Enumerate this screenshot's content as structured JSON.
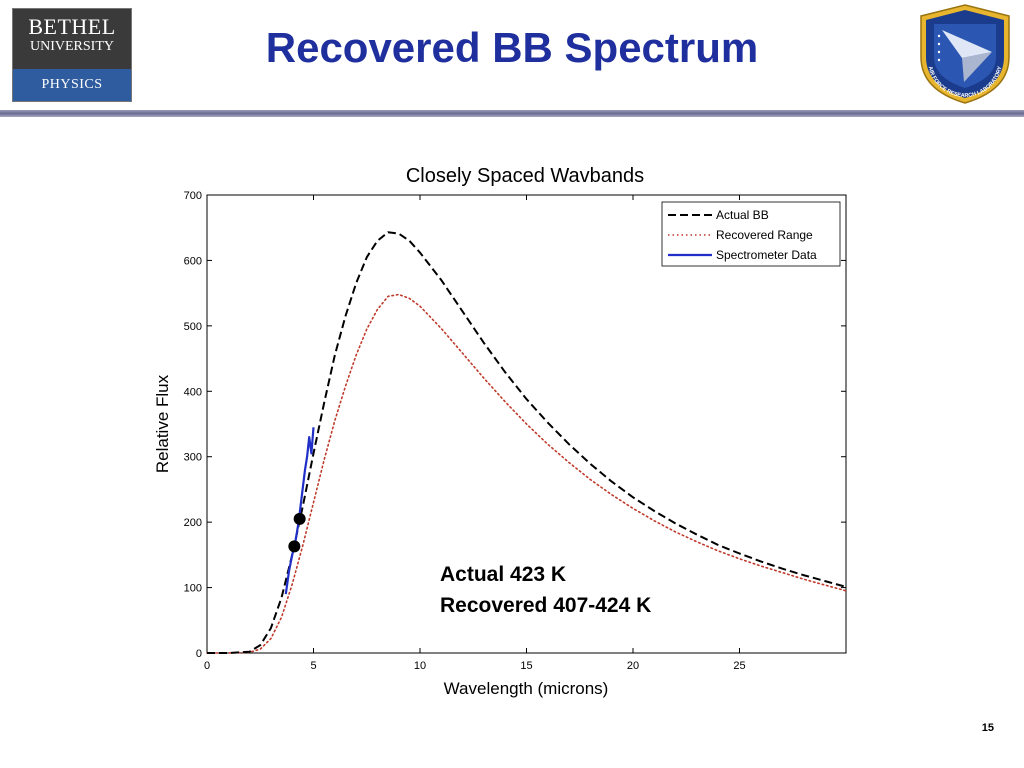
{
  "slide": {
    "title": "Recovered BB Spectrum",
    "number": "15",
    "logos": {
      "left": {
        "line1": "BETHEL",
        "line2": "UNIVERSITY",
        "line3": "PHYSICS"
      },
      "right": {
        "name": "AIR FORCE RESEARCH LABORATORY"
      }
    },
    "annotation": {
      "line1": "Actual 423 K",
      "line2": "Recovered 407-424 K"
    },
    "colors": {
      "title": "#1f2f9e",
      "actual": "#000000",
      "recovered": "#c0392b",
      "spectrometer": "#1f2fc8"
    }
  },
  "chart_data": {
    "type": "line",
    "title": "Closely Spaced Wavbands",
    "xlabel": "Wavelength (microns)",
    "ylabel": "Relative Flux",
    "xlim": [
      0,
      30
    ],
    "ylim": [
      0,
      700
    ],
    "xticks": [
      0,
      5,
      10,
      15,
      20,
      25
    ],
    "yticks": [
      0,
      100,
      200,
      300,
      400,
      500,
      600,
      700
    ],
    "grid": false,
    "legend_position": "top-right",
    "series": [
      {
        "name": "Actual BB",
        "style": "dashed",
        "color": "#000000",
        "x": [
          0,
          1,
          2,
          2.5,
          3,
          3.5,
          4,
          4.5,
          5,
          5.5,
          6,
          6.5,
          7,
          7.5,
          8,
          8.5,
          9,
          9.5,
          10,
          11,
          12,
          13,
          14,
          15,
          16,
          17,
          18,
          19,
          20,
          21,
          22,
          23,
          24,
          25,
          26,
          27,
          28,
          29,
          30
        ],
        "y": [
          0,
          0,
          2,
          12,
          38,
          85,
          150,
          225,
          305,
          382,
          455,
          515,
          565,
          605,
          630,
          643,
          641,
          630,
          612,
          570,
          522,
          474,
          429,
          388,
          352,
          319,
          289,
          262,
          238,
          217,
          198,
          181,
          165,
          152,
          140,
          129,
          119,
          110,
          101
        ]
      },
      {
        "name": "Recovered Range",
        "style": "dotted",
        "color": "#c0392b",
        "x": [
          0,
          1,
          2,
          2.5,
          3,
          3.5,
          4,
          4.5,
          5,
          5.5,
          6,
          6.5,
          7,
          7.5,
          8,
          8.5,
          9,
          9.5,
          10,
          11,
          12,
          13,
          14,
          15,
          16,
          17,
          18,
          19,
          20,
          21,
          22,
          23,
          24,
          25,
          26,
          27,
          28,
          29,
          30
        ],
        "y": [
          0,
          0,
          1,
          6,
          22,
          55,
          105,
          165,
          230,
          295,
          355,
          408,
          455,
          495,
          525,
          545,
          548,
          542,
          530,
          496,
          458,
          420,
          384,
          350,
          319,
          291,
          265,
          242,
          221,
          202,
          185,
          170,
          156,
          144,
          133,
          123,
          113,
          104,
          95
        ]
      },
      {
        "name": "Spectrometer Data",
        "style": "solid",
        "color": "#1f2fc8",
        "x": [
          3.7,
          3.85,
          4.0,
          4.15,
          4.3,
          4.45,
          4.6,
          4.7,
          4.8,
          4.9,
          5.0
        ],
        "y": [
          90,
          125,
          150,
          170,
          200,
          240,
          280,
          300,
          330,
          305,
          345
        ]
      }
    ],
    "markers": [
      {
        "x": 4.1,
        "y": 163
      },
      {
        "x": 4.35,
        "y": 205
      }
    ]
  }
}
